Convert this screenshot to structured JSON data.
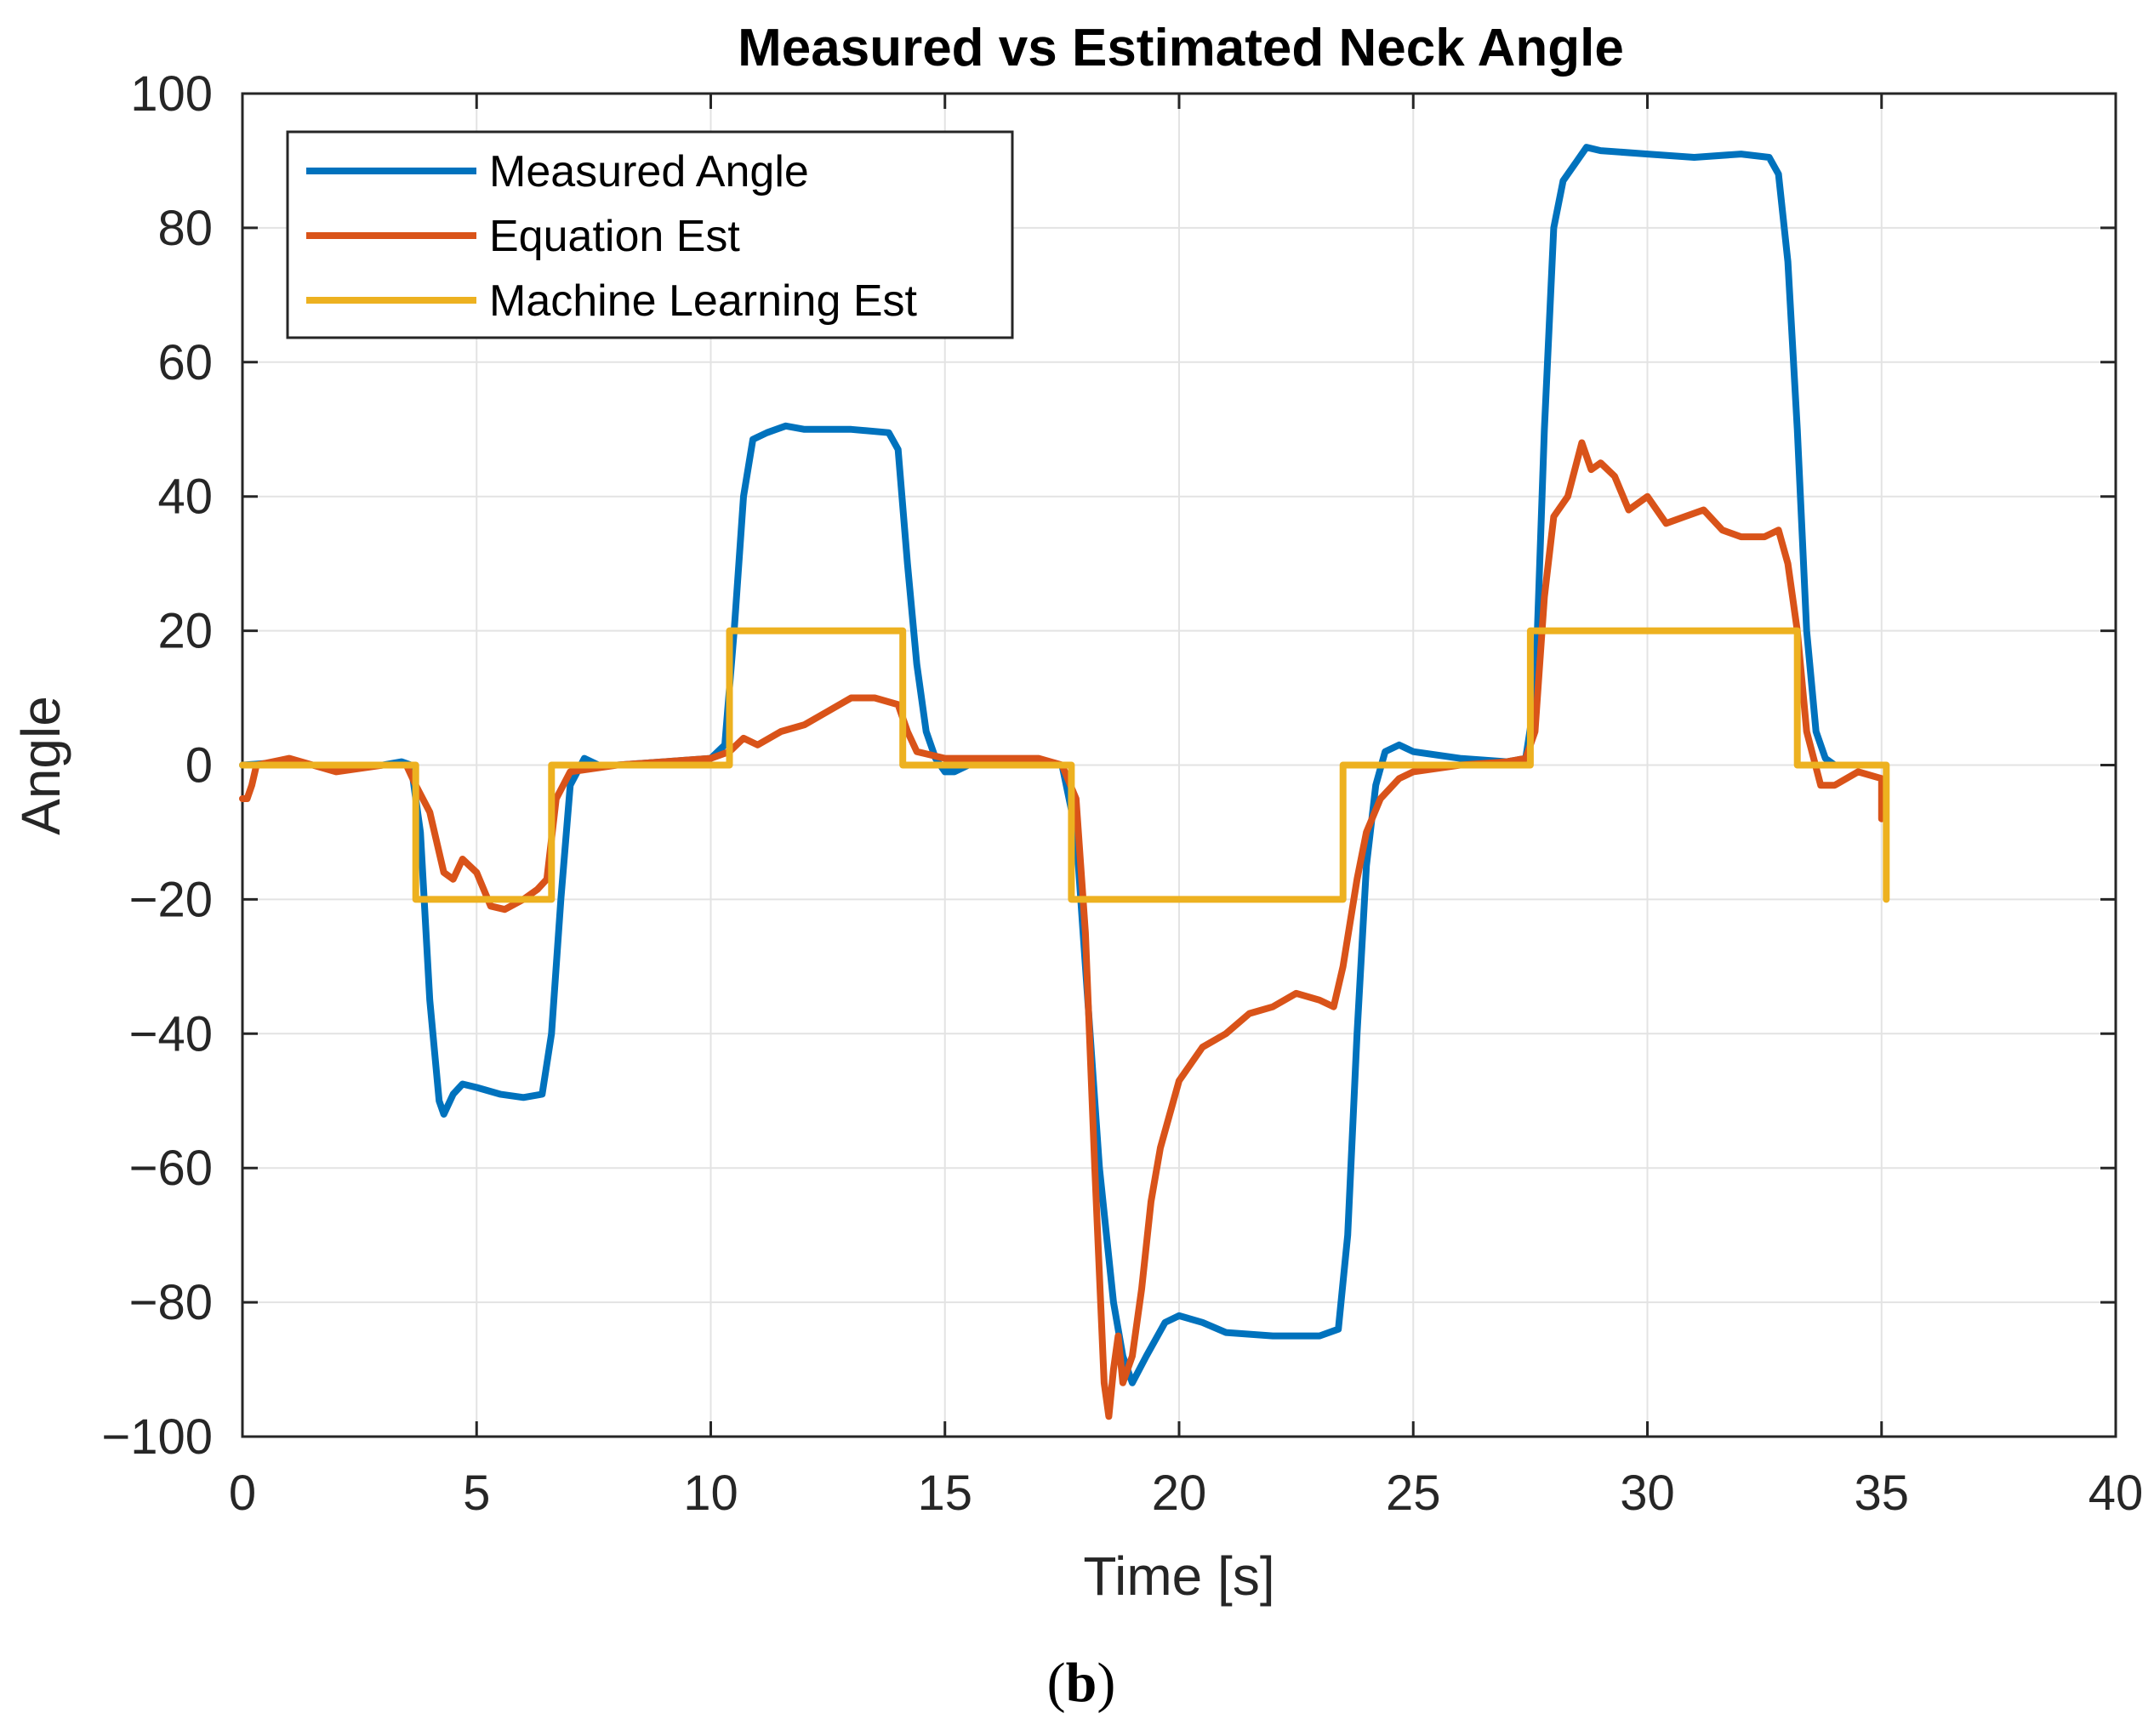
{
  "chart_data": {
    "type": "line",
    "title": "Measured vs Estimated Neck Angle",
    "xlabel": "Time [s]",
    "ylabel": "Angle",
    "xlim": [
      0,
      40
    ],
    "ylim": [
      -100,
      100
    ],
    "xticks": [
      0,
      5,
      10,
      15,
      20,
      25,
      30,
      35,
      40
    ],
    "yticks": [
      -100,
      -80,
      -60,
      -40,
      -20,
      0,
      20,
      40,
      60,
      80,
      100
    ],
    "xtick_labels": [
      "0",
      "5",
      "10",
      "15",
      "20",
      "25",
      "30",
      "35",
      "40"
    ],
    "ytick_labels": [
      "−100",
      "−80",
      "−60",
      "−40",
      "−20",
      "0",
      "20",
      "40",
      "60",
      "80",
      "100"
    ],
    "grid": true,
    "legend_position": "top-left",
    "caption_open": "(",
    "caption_letter": "b",
    "caption_close": ")",
    "series": [
      {
        "name": "Measured Angle",
        "color": "#0072BD",
        "points": [
          [
            0,
            0
          ],
          [
            1,
            0.5
          ],
          [
            2,
            -0.5
          ],
          [
            3,
            0
          ],
          [
            3.4,
            0.5
          ],
          [
            3.6,
            0
          ],
          [
            3.8,
            -10
          ],
          [
            4,
            -35
          ],
          [
            4.2,
            -50
          ],
          [
            4.3,
            -52
          ],
          [
            4.5,
            -49
          ],
          [
            4.7,
            -47.5
          ],
          [
            5,
            -48
          ],
          [
            5.5,
            -49
          ],
          [
            6,
            -49.5
          ],
          [
            6.4,
            -49
          ],
          [
            6.6,
            -40
          ],
          [
            6.8,
            -20
          ],
          [
            7,
            -3
          ],
          [
            7.3,
            1
          ],
          [
            7.6,
            0
          ],
          [
            8,
            0
          ],
          [
            9,
            0.5
          ],
          [
            10,
            1
          ],
          [
            10.3,
            3
          ],
          [
            10.5,
            20
          ],
          [
            10.7,
            40
          ],
          [
            10.9,
            48.5
          ],
          [
            11.2,
            49.5
          ],
          [
            11.6,
            50.5
          ],
          [
            12,
            50
          ],
          [
            13,
            50
          ],
          [
            13.8,
            49.5
          ],
          [
            14,
            47
          ],
          [
            14.2,
            30
          ],
          [
            14.4,
            15
          ],
          [
            14.6,
            5
          ],
          [
            14.8,
            1
          ],
          [
            15,
            -1
          ],
          [
            15.2,
            -1
          ],
          [
            15.5,
            0
          ],
          [
            16,
            0
          ],
          [
            17,
            0
          ],
          [
            17.5,
            0
          ],
          [
            17.8,
            -10
          ],
          [
            18,
            -30
          ],
          [
            18.3,
            -60
          ],
          [
            18.6,
            -80
          ],
          [
            18.8,
            -88
          ],
          [
            19,
            -92
          ],
          [
            19.3,
            -88
          ],
          [
            19.7,
            -83
          ],
          [
            20,
            -82
          ],
          [
            20.5,
            -83
          ],
          [
            21,
            -84.5
          ],
          [
            22,
            -85
          ],
          [
            23,
            -85
          ],
          [
            23.4,
            -84
          ],
          [
            23.6,
            -70
          ],
          [
            23.8,
            -40
          ],
          [
            24,
            -15
          ],
          [
            24.2,
            -3
          ],
          [
            24.4,
            2
          ],
          [
            24.7,
            3
          ],
          [
            25,
            2
          ],
          [
            26,
            1
          ],
          [
            27,
            0.5
          ],
          [
            27.4,
            1
          ],
          [
            27.6,
            10
          ],
          [
            27.8,
            50
          ],
          [
            28,
            80
          ],
          [
            28.2,
            87
          ],
          [
            28.5,
            90
          ],
          [
            28.7,
            92
          ],
          [
            29,
            91.5
          ],
          [
            30,
            91
          ],
          [
            31,
            90.5
          ],
          [
            32,
            91
          ],
          [
            32.6,
            90.5
          ],
          [
            32.8,
            88
          ],
          [
            33,
            75
          ],
          [
            33.2,
            50
          ],
          [
            33.4,
            20
          ],
          [
            33.6,
            5
          ],
          [
            33.8,
            1
          ],
          [
            34,
            0
          ],
          [
            34.5,
            0
          ],
          [
            35,
            0
          ]
        ]
      },
      {
        "name": "Equation Est",
        "color": "#D95319",
        "points": [
          [
            0,
            -5
          ],
          [
            0.1,
            -5
          ],
          [
            0.2,
            -3
          ],
          [
            0.3,
            0
          ],
          [
            1,
            1
          ],
          [
            2,
            -1
          ],
          [
            3,
            0
          ],
          [
            3.5,
            0
          ],
          [
            3.7,
            -3
          ],
          [
            4,
            -7
          ],
          [
            4.3,
            -16
          ],
          [
            4.5,
            -17
          ],
          [
            4.7,
            -14
          ],
          [
            5,
            -16
          ],
          [
            5.3,
            -21
          ],
          [
            5.6,
            -21.5
          ],
          [
            6,
            -20
          ],
          [
            6.3,
            -18.5
          ],
          [
            6.5,
            -17
          ],
          [
            6.7,
            -5
          ],
          [
            7,
            -1
          ],
          [
            8,
            0
          ],
          [
            9,
            0.5
          ],
          [
            10,
            1
          ],
          [
            10.4,
            2
          ],
          [
            10.7,
            4
          ],
          [
            11,
            3
          ],
          [
            11.5,
            5
          ],
          [
            12,
            6
          ],
          [
            12.5,
            8
          ],
          [
            13,
            10
          ],
          [
            13.5,
            10
          ],
          [
            14,
            9
          ],
          [
            14.2,
            5
          ],
          [
            14.4,
            2
          ],
          [
            15,
            1
          ],
          [
            16,
            1
          ],
          [
            17,
            1
          ],
          [
            17.5,
            0
          ],
          [
            17.8,
            -5
          ],
          [
            18,
            -25
          ],
          [
            18.2,
            -60
          ],
          [
            18.4,
            -92
          ],
          [
            18.5,
            -97
          ],
          [
            18.6,
            -90
          ],
          [
            18.7,
            -85
          ],
          [
            18.8,
            -92
          ],
          [
            19,
            -88
          ],
          [
            19.2,
            -78
          ],
          [
            19.4,
            -65
          ],
          [
            19.6,
            -57
          ],
          [
            19.8,
            -52
          ],
          [
            20,
            -47
          ],
          [
            20.5,
            -42
          ],
          [
            21,
            -40
          ],
          [
            21.5,
            -37
          ],
          [
            22,
            -36
          ],
          [
            22.5,
            -34
          ],
          [
            23,
            -35
          ],
          [
            23.3,
            -36
          ],
          [
            23.5,
            -30
          ],
          [
            23.8,
            -17
          ],
          [
            24,
            -10
          ],
          [
            24.3,
            -5
          ],
          [
            24.7,
            -2
          ],
          [
            25,
            -1
          ],
          [
            26,
            0
          ],
          [
            27,
            0.5
          ],
          [
            27.4,
            1
          ],
          [
            27.6,
            5
          ],
          [
            27.8,
            25
          ],
          [
            28,
            37
          ],
          [
            28.3,
            40
          ],
          [
            28.6,
            48
          ],
          [
            28.8,
            44
          ],
          [
            29,
            45
          ],
          [
            29.3,
            43
          ],
          [
            29.6,
            38
          ],
          [
            30,
            40
          ],
          [
            30.4,
            36
          ],
          [
            30.8,
            37
          ],
          [
            31.2,
            38
          ],
          [
            31.6,
            35
          ],
          [
            32,
            34
          ],
          [
            32.5,
            34
          ],
          [
            32.8,
            35
          ],
          [
            33,
            30
          ],
          [
            33.2,
            20
          ],
          [
            33.4,
            5
          ],
          [
            33.7,
            -3
          ],
          [
            34,
            -3
          ],
          [
            34.5,
            -1
          ],
          [
            35,
            -2
          ],
          [
            35,
            -8
          ]
        ]
      },
      {
        "name": "Machine Learning Est",
        "color": "#EDB120",
        "points": [
          [
            0,
            0
          ],
          [
            3.7,
            0
          ],
          [
            3.7,
            -20
          ],
          [
            6.6,
            -20
          ],
          [
            6.6,
            0
          ],
          [
            10.4,
            0
          ],
          [
            10.4,
            20
          ],
          [
            14.1,
            20
          ],
          [
            14.1,
            0
          ],
          [
            17.7,
            0
          ],
          [
            17.7,
            -20
          ],
          [
            23.5,
            -20
          ],
          [
            23.5,
            0
          ],
          [
            27.5,
            0
          ],
          [
            27.5,
            20
          ],
          [
            33.2,
            20
          ],
          [
            33.2,
            0
          ],
          [
            35.1,
            0
          ],
          [
            35.1,
            -20
          ]
        ]
      }
    ]
  }
}
